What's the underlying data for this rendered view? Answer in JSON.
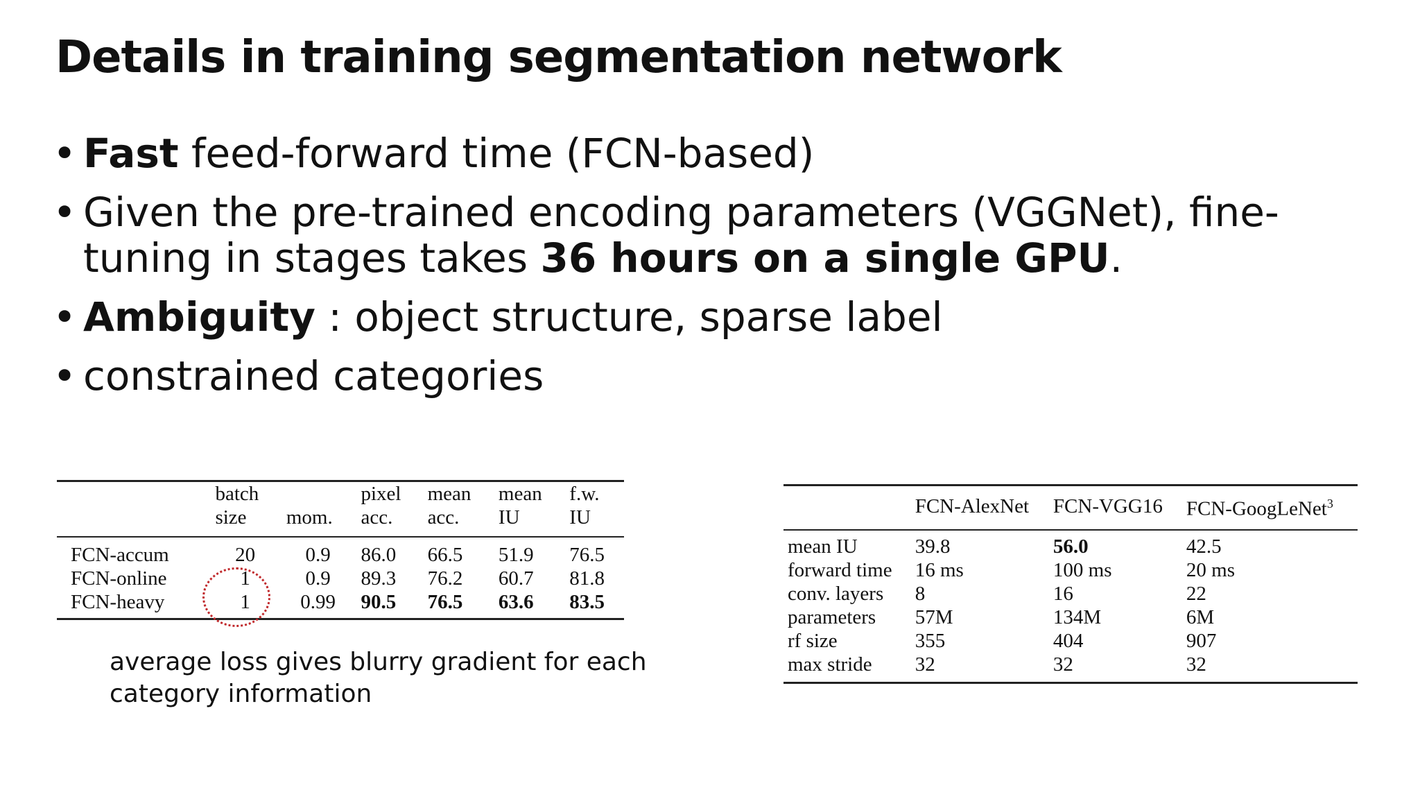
{
  "slide": {
    "title": "Details in training segmentation network",
    "bullets": [
      [
        {
          "text": "Fast",
          "bold": true
        },
        {
          "text": " feed-forward time (FCN-based)",
          "bold": false
        }
      ],
      [
        {
          "text": "Given the pre-trained encoding parameters (VGGNet), fine-tuning in stages takes ",
          "bold": false
        },
        {
          "text": "36 hours on a single GPU",
          "bold": true
        },
        {
          "text": ".",
          "bold": false
        }
      ],
      [
        {
          "text": "Ambiguity",
          "bold": true
        },
        {
          "text": " : object structure, sparse label",
          "bold": false
        }
      ],
      [
        {
          "text": "constrained categories",
          "bold": false
        }
      ]
    ],
    "bullet_symbol": "•",
    "note": "average loss gives blurry gradient for each category information"
  },
  "training_table": {
    "headers": [
      {
        "line1": "",
        "line2": ""
      },
      {
        "line1": "batch",
        "line2": "size"
      },
      {
        "line1": "",
        "line2": "mom."
      },
      {
        "line1": "pixel",
        "line2": "acc."
      },
      {
        "line1": "mean",
        "line2": "acc."
      },
      {
        "line1": "mean",
        "line2": "IU"
      },
      {
        "line1": "f.w.",
        "line2": "IU"
      }
    ],
    "rows": [
      {
        "cells": [
          "FCN-accum",
          "20",
          "0.9",
          "86.0",
          "66.5",
          "51.9",
          "76.5"
        ],
        "bold": [
          false,
          false,
          false,
          false,
          false,
          false,
          false
        ]
      },
      {
        "cells": [
          "FCN-online",
          "1",
          "0.9",
          "89.3",
          "76.2",
          "60.7",
          "81.8"
        ],
        "bold": [
          false,
          false,
          false,
          false,
          false,
          false,
          false
        ]
      },
      {
        "cells": [
          "FCN-heavy",
          "1",
          "0.99",
          "90.5",
          "76.5",
          "63.6",
          "83.5"
        ],
        "bold": [
          false,
          false,
          false,
          true,
          true,
          true,
          true
        ]
      }
    ],
    "highlight_color": "#c0282b"
  },
  "model_table": {
    "headers": [
      "",
      "FCN-AlexNet",
      "FCN-VGG16",
      "FCN-GoogLeNet"
    ],
    "header_superscript": "3",
    "rows": [
      {
        "cells": [
          "mean IU",
          "39.8",
          "56.0",
          "42.5"
        ],
        "bold": [
          false,
          false,
          true,
          false
        ]
      },
      {
        "cells": [
          "forward time",
          "16 ms",
          "100 ms",
          "20 ms"
        ],
        "bold": [
          false,
          false,
          false,
          false
        ]
      },
      {
        "cells": [
          "conv. layers",
          "8",
          "16",
          "22"
        ],
        "bold": [
          false,
          false,
          false,
          false
        ]
      },
      {
        "cells": [
          "parameters",
          "57M",
          "134M",
          "6M"
        ],
        "bold": [
          false,
          false,
          false,
          false
        ]
      },
      {
        "cells": [
          "rf size",
          "355",
          "404",
          "907"
        ],
        "bold": [
          false,
          false,
          false,
          false
        ]
      },
      {
        "cells": [
          "max stride",
          "32",
          "32",
          "32"
        ],
        "bold": [
          false,
          false,
          false,
          false
        ]
      }
    ]
  }
}
